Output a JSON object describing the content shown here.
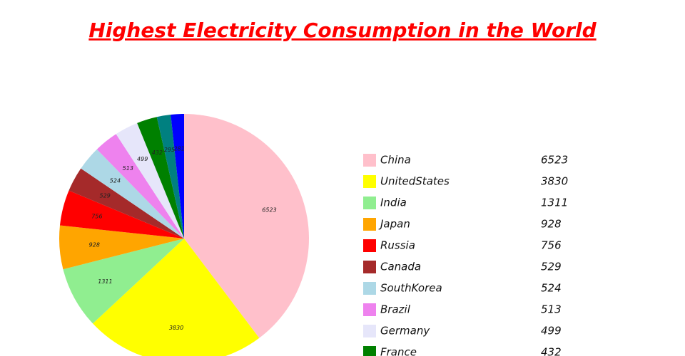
{
  "chart_data": {
    "type": "pie",
    "title": "Highest Electricity Consumption in the World",
    "categories": [
      "China",
      "UnitedStates",
      "India",
      "Japan",
      "Russia",
      "Canada",
      "SouthKorea",
      "Brazil",
      "Germany",
      "France",
      null,
      null
    ],
    "values": [
      6523,
      3830,
      1311,
      928,
      756,
      529,
      524,
      513,
      499,
      432,
      295,
      281
    ],
    "colors": [
      "#ffc0cb",
      "#ffff00",
      "#90ee90",
      "#ffa500",
      "#ff0000",
      "#a52a2a",
      "#add8e6",
      "#ee82ee",
      "#e6e6fa",
      "#008000",
      "#008080",
      "#0000ff"
    ]
  }
}
